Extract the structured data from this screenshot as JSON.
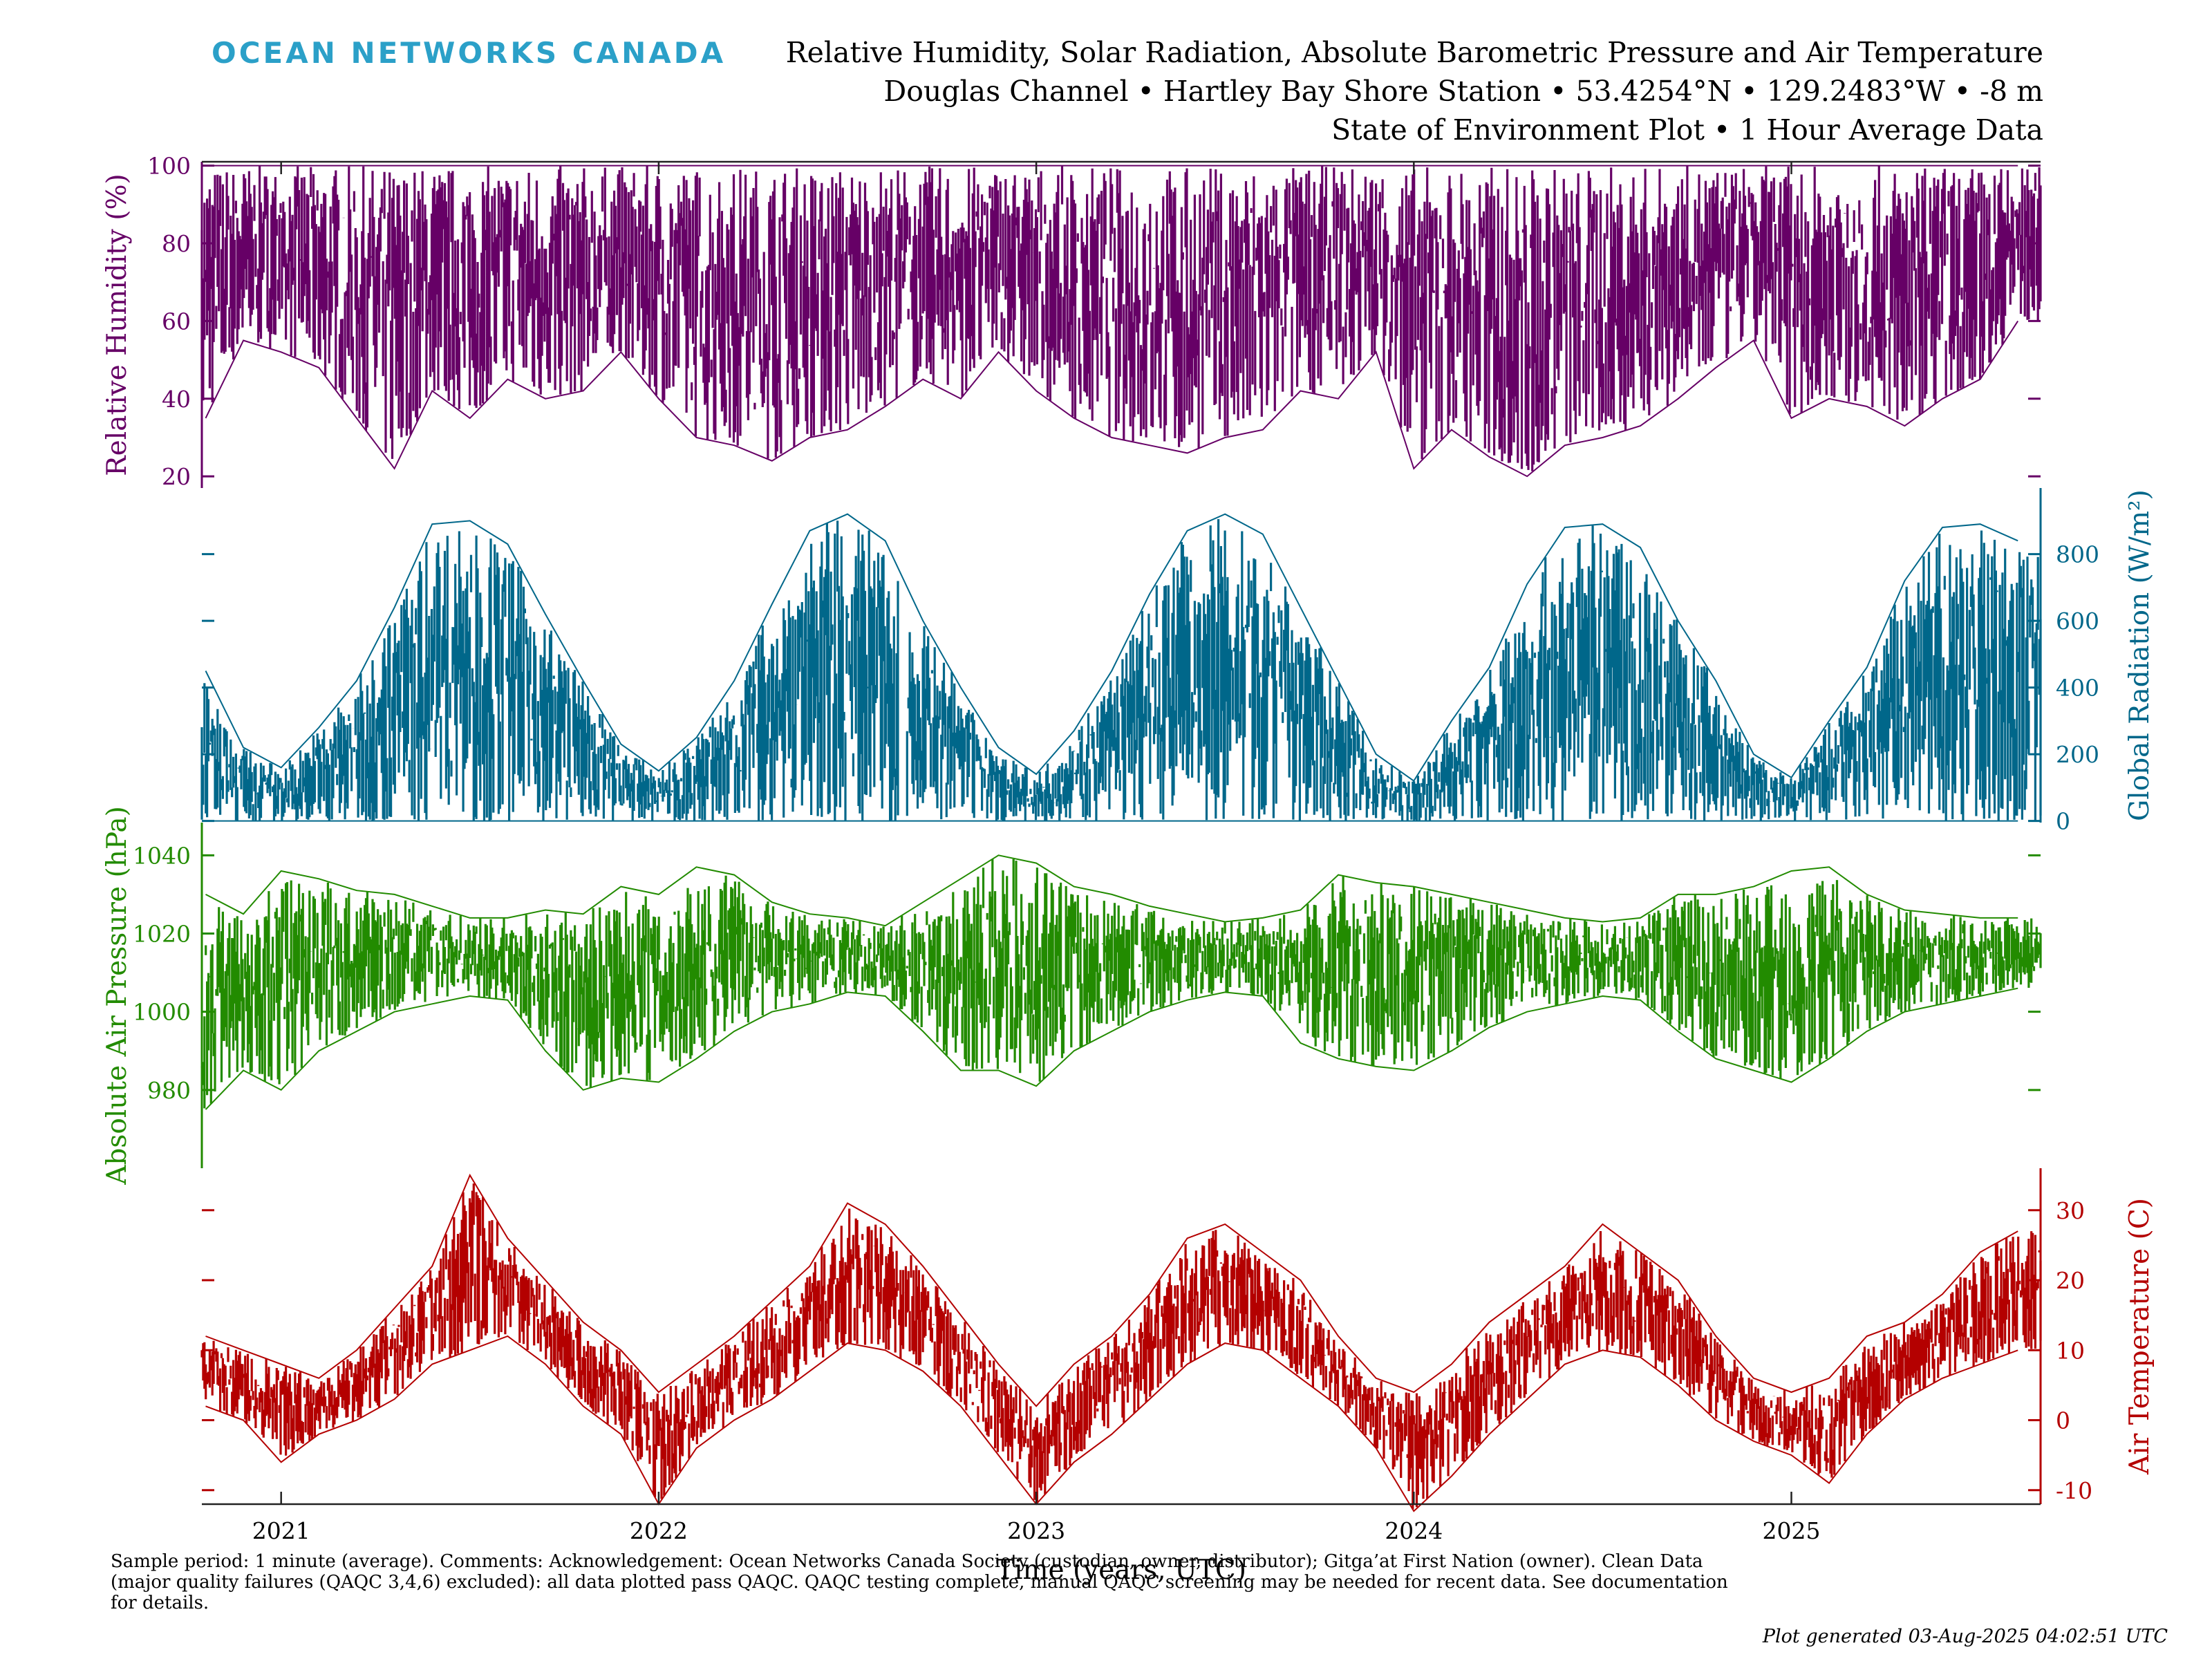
{
  "header": {
    "logo": "OCEAN NETWORKS CANADA",
    "title_line1": "Relative Humidity, Solar Radiation, Absolute Barometric Pressure and Air Temperature",
    "title_line2": "Douglas Channel • Hartley Bay Shore Station • 53.4254°N • 129.2483°W • -8 m",
    "title_line3": "State of Environment Plot • 1 Hour Average Data"
  },
  "footer": {
    "note": "Sample period: 1 minute (average). Comments: Acknowledgement: Ocean Networks Canada Society (custodian, owner, distributor); Gitga’at First Nation (owner). Clean Data (major quality failures (QAQC 3,4,6) excluded): all data plotted pass QAQC. QAQC testing complete, manual QAQC screening may be needed for recent data. See documentation for details.",
    "generated": "Plot generated 03-Aug-2025 04:02:51 UTC"
  },
  "chart_data": {
    "type": "line",
    "xlabel": "Time (years, UTC)",
    "x_ticks": [
      "2021",
      "2022",
      "2023",
      "2024",
      "2025"
    ],
    "x_tick_values": [
      2021.0,
      2022.0,
      2023.0,
      2024.0,
      2025.0
    ],
    "xlim": [
      2020.79,
      2025.66
    ],
    "grid": false,
    "panels": [
      {
        "name": "Relative Humidity",
        "ylabel": "Relative Humidity (%)",
        "axis_side": "left",
        "color": "#660066",
        "ylim": [
          17,
          101
        ],
        "yticks": [
          20,
          40,
          60,
          80,
          100
        ],
        "style": "range-fill",
        "x": [
          2020.8,
          2020.9,
          2021.0,
          2021.1,
          2021.2,
          2021.3,
          2021.4,
          2021.5,
          2021.6,
          2021.7,
          2021.8,
          2021.9,
          2022.0,
          2022.1,
          2022.2,
          2022.3,
          2022.4,
          2022.5,
          2022.6,
          2022.7,
          2022.8,
          2022.9,
          2023.0,
          2023.1,
          2023.2,
          2023.3,
          2023.4,
          2023.5,
          2023.6,
          2023.7,
          2023.8,
          2023.9,
          2024.0,
          2024.1,
          2024.2,
          2024.3,
          2024.4,
          2024.5,
          2024.6,
          2024.7,
          2024.8,
          2024.9,
          2025.0,
          2025.1,
          2025.2,
          2025.3,
          2025.4,
          2025.5,
          2025.6
        ],
        "max": [
          100,
          100,
          100,
          100,
          100,
          100,
          100,
          100,
          100,
          100,
          100,
          100,
          100,
          100,
          100,
          100,
          100,
          100,
          100,
          100,
          100,
          100,
          100,
          100,
          100,
          100,
          100,
          100,
          100,
          100,
          100,
          100,
          100,
          100,
          100,
          100,
          100,
          100,
          100,
          100,
          100,
          100,
          100,
          100,
          100,
          100,
          100,
          100,
          100
        ],
        "min": [
          35,
          55,
          52,
          48,
          35,
          22,
          42,
          35,
          45,
          40,
          42,
          52,
          40,
          30,
          28,
          24,
          30,
          32,
          38,
          45,
          40,
          52,
          42,
          35,
          30,
          28,
          26,
          30,
          32,
          42,
          40,
          52,
          22,
          32,
          25,
          20,
          28,
          30,
          33,
          40,
          48,
          55,
          35,
          40,
          38,
          33,
          40,
          45,
          60
        ]
      },
      {
        "name": "Global Radiation",
        "ylabel": "Global Radiation (W/m²)",
        "axis_side": "right",
        "color": "#00678a",
        "ylim": [
          -5,
          965
        ],
        "yticks": [
          0,
          200,
          400,
          600,
          800
        ],
        "style": "range-fill",
        "x": [
          2020.8,
          2020.9,
          2021.0,
          2021.1,
          2021.2,
          2021.3,
          2021.4,
          2021.5,
          2021.6,
          2021.7,
          2021.8,
          2021.9,
          2022.0,
          2022.1,
          2022.2,
          2022.3,
          2022.4,
          2022.5,
          2022.6,
          2022.7,
          2022.8,
          2022.9,
          2023.0,
          2023.1,
          2023.2,
          2023.3,
          2023.4,
          2023.5,
          2023.6,
          2023.7,
          2023.8,
          2023.9,
          2024.0,
          2024.1,
          2024.2,
          2024.3,
          2024.4,
          2024.5,
          2024.6,
          2024.7,
          2024.8,
          2024.9,
          2025.0,
          2025.1,
          2025.2,
          2025.3,
          2025.4,
          2025.5,
          2025.6
        ],
        "max": [
          450,
          220,
          160,
          280,
          420,
          640,
          890,
          900,
          830,
          620,
          420,
          230,
          150,
          250,
          420,
          650,
          870,
          920,
          840,
          600,
          400,
          220,
          140,
          270,
          450,
          680,
          870,
          920,
          860,
          640,
          420,
          200,
          120,
          300,
          460,
          710,
          880,
          890,
          820,
          600,
          420,
          200,
          130,
          300,
          460,
          720,
          880,
          890,
          840
        ],
        "min": [
          0,
          0,
          0,
          0,
          0,
          0,
          0,
          0,
          0,
          0,
          0,
          0,
          0,
          0,
          0,
          0,
          0,
          0,
          0,
          0,
          0,
          0,
          0,
          0,
          0,
          0,
          0,
          0,
          0,
          0,
          0,
          0,
          0,
          0,
          0,
          0,
          0,
          0,
          0,
          0,
          0,
          0,
          0,
          0,
          0,
          0,
          0,
          0,
          0
        ],
        "gaps": [
          [
            2022.637,
            2022.655
          ]
        ]
      },
      {
        "name": "Absolute Air Pressure",
        "ylabel": "Absolute Air Pressure (hPa)",
        "axis_side": "left",
        "color": "#228b00",
        "ylim": [
          960,
          1042
        ],
        "yticks": [
          980,
          1000,
          1020,
          1040
        ],
        "style": "range-fill",
        "x": [
          2020.8,
          2020.9,
          2021.0,
          2021.1,
          2021.2,
          2021.3,
          2021.4,
          2021.5,
          2021.6,
          2021.7,
          2021.8,
          2021.9,
          2022.0,
          2022.1,
          2022.2,
          2022.3,
          2022.4,
          2022.5,
          2022.6,
          2022.7,
          2022.8,
          2022.9,
          2023.0,
          2023.1,
          2023.2,
          2023.3,
          2023.4,
          2023.5,
          2023.6,
          2023.7,
          2023.8,
          2023.9,
          2024.0,
          2024.1,
          2024.2,
          2024.3,
          2024.4,
          2024.5,
          2024.6,
          2024.7,
          2024.8,
          2024.9,
          2025.0,
          2025.1,
          2025.2,
          2025.3,
          2025.4,
          2025.5,
          2025.6
        ],
        "max": [
          1030,
          1025,
          1036,
          1034,
          1031,
          1030,
          1027,
          1024,
          1024,
          1026,
          1025,
          1032,
          1030,
          1037,
          1035,
          1028,
          1025,
          1024,
          1022,
          1028,
          1034,
          1040,
          1038,
          1032,
          1030,
          1027,
          1025,
          1023,
          1024,
          1026,
          1035,
          1033,
          1032,
          1030,
          1028,
          1026,
          1024,
          1023,
          1024,
          1030,
          1030,
          1032,
          1036,
          1037,
          1030,
          1026,
          1025,
          1024,
          1024
        ],
        "min": [
          975,
          985,
          980,
          990,
          995,
          1000,
          1002,
          1004,
          1003,
          990,
          980,
          983,
          982,
          988,
          995,
          1000,
          1002,
          1005,
          1004,
          995,
          985,
          985,
          981,
          990,
          995,
          1000,
          1003,
          1005,
          1004,
          992,
          988,
          986,
          985,
          990,
          996,
          1000,
          1002,
          1004,
          1003,
          995,
          988,
          985,
          982,
          988,
          995,
          1000,
          1002,
          1004,
          1006
        ]
      },
      {
        "name": "Air Temperature",
        "ylabel": "Air Temperature (C)",
        "axis_side": "right",
        "color": "#b40000",
        "ylim": [
          -12,
          36
        ],
        "yticks": [
          -10,
          0,
          10,
          20,
          30
        ],
        "style": "range-fill",
        "x": [
          2020.8,
          2020.9,
          2021.0,
          2021.1,
          2021.2,
          2021.3,
          2021.4,
          2021.5,
          2021.6,
          2021.7,
          2021.8,
          2021.9,
          2022.0,
          2022.1,
          2022.2,
          2022.3,
          2022.4,
          2022.5,
          2022.6,
          2022.7,
          2022.8,
          2022.9,
          2023.0,
          2023.1,
          2023.2,
          2023.3,
          2023.4,
          2023.5,
          2023.6,
          2023.7,
          2023.8,
          2023.9,
          2024.0,
          2024.1,
          2024.2,
          2024.3,
          2024.4,
          2024.5,
          2024.6,
          2024.7,
          2024.8,
          2024.9,
          2025.0,
          2025.1,
          2025.2,
          2025.3,
          2025.4,
          2025.5,
          2025.6
        ],
        "max": [
          12,
          10,
          8,
          6,
          10,
          16,
          22,
          35,
          26,
          20,
          14,
          10,
          4,
          8,
          12,
          17,
          22,
          31,
          28,
          22,
          15,
          8,
          2,
          8,
          12,
          18,
          26,
          28,
          24,
          20,
          12,
          6,
          4,
          8,
          14,
          18,
          22,
          28,
          24,
          20,
          12,
          6,
          4,
          6,
          12,
          14,
          18,
          24,
          27
        ],
        "min": [
          2,
          0,
          -6,
          -2,
          0,
          3,
          8,
          10,
          12,
          8,
          2,
          -2,
          -12,
          -4,
          0,
          3,
          7,
          11,
          10,
          7,
          2,
          -5,
          -12,
          -6,
          -2,
          3,
          8,
          11,
          10,
          6,
          2,
          -4,
          -13,
          -8,
          -2,
          3,
          8,
          10,
          9,
          5,
          0,
          -3,
          -5,
          -9,
          -2,
          3,
          6,
          8,
          10
        ]
      }
    ]
  }
}
